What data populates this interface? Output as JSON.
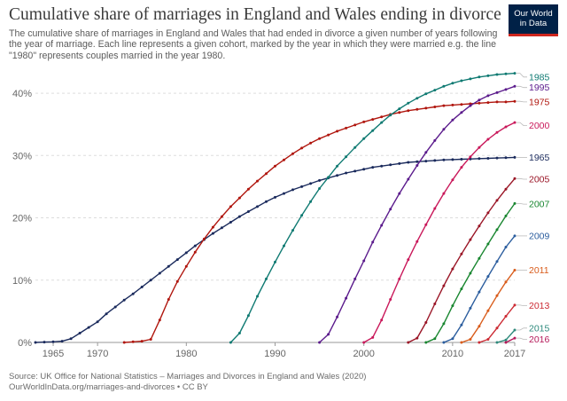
{
  "header": {
    "title": "Cumulative share of marriages in England and Wales ending in divorce",
    "subtitle": "The cumulative share of marriages in England and Wales that had ended in divorce a given number of years following the year of marriage. Each line represents a given cohort, marked by the year in which they were married e.g. the line \"1980\" represents couples married in the year 1980.",
    "logo_line1": "Our World",
    "logo_line2": "in Data"
  },
  "footer": {
    "source": "Source: UK Office for National Statistics – Marriages and Divorces in England and Wales (2020)",
    "url": "OurWorldInData.org/marriages-and-divorces • CC BY"
  },
  "chart_data": {
    "type": "line",
    "title": "Cumulative share of marriages in England and Wales ending in divorce",
    "xlabel": "",
    "ylabel": "",
    "xlim": [
      1963,
      2017
    ],
    "ylim": [
      0,
      43
    ],
    "x_ticks": [
      1965,
      1970,
      1980,
      1990,
      2000,
      2010,
      2017
    ],
    "y_ticks": [
      0,
      10,
      20,
      30,
      40
    ],
    "y_tick_suffix": "%",
    "grid": "horizontal dashed",
    "legend": "line end labels on the right",
    "series": [
      {
        "name": "1965",
        "color": "#1a2a5c",
        "x": [
          1963,
          1964,
          1965,
          1966,
          1967,
          1968,
          1969,
          1970,
          1971,
          1972,
          1973,
          1974,
          1975,
          1976,
          1977,
          1978,
          1979,
          1980,
          1981,
          1982,
          1983,
          1984,
          1985,
          1986,
          1987,
          1988,
          1989,
          1990,
          1991,
          1992,
          1993,
          1994,
          1995,
          1996,
          1997,
          1998,
          1999,
          2000,
          2001,
          2002,
          2003,
          2004,
          2005,
          2006,
          2007,
          2008,
          2009,
          2010,
          2011,
          2012,
          2013,
          2014,
          2015,
          2016,
          2017
        ],
        "y": [
          0,
          0.05,
          0.1,
          0.2,
          0.6,
          1.5,
          2.4,
          3.3,
          4.6,
          5.7,
          6.8,
          7.8,
          8.9,
          10,
          11.1,
          12.2,
          13.3,
          14.4,
          15.5,
          16.5,
          17.5,
          18.4,
          19.3,
          20.2,
          21,
          21.8,
          22.6,
          23.3,
          23.9,
          24.5,
          25,
          25.5,
          26,
          26.4,
          26.8,
          27.2,
          27.5,
          27.8,
          28.1,
          28.3,
          28.5,
          28.7,
          28.9,
          29,
          29.1,
          29.2,
          29.3,
          29.35,
          29.4,
          29.45,
          29.5,
          29.55,
          29.6,
          29.65,
          29.7
        ]
      },
      {
        "name": "1975",
        "color": "#b0160e",
        "x": [
          1973,
          1974,
          1975,
          1976,
          1977,
          1978,
          1979,
          1980,
          1981,
          1982,
          1983,
          1984,
          1985,
          1986,
          1987,
          1988,
          1989,
          1990,
          1991,
          1992,
          1993,
          1994,
          1995,
          1996,
          1997,
          1998,
          1999,
          2000,
          2001,
          2002,
          2003,
          2004,
          2005,
          2006,
          2007,
          2008,
          2009,
          2010,
          2011,
          2012,
          2013,
          2014,
          2015,
          2016,
          2017
        ],
        "y": [
          0,
          0.1,
          0.2,
          0.5,
          3.6,
          6.9,
          9.8,
          12.2,
          14.5,
          16.6,
          18.5,
          20.2,
          21.8,
          23.2,
          24.6,
          25.9,
          27.1,
          28.3,
          29.3,
          30.3,
          31.2,
          32,
          32.7,
          33.3,
          33.9,
          34.4,
          34.9,
          35.4,
          35.8,
          36.2,
          36.6,
          36.9,
          37.2,
          37.4,
          37.6,
          37.8,
          38,
          38.1,
          38.2,
          38.3,
          38.4,
          38.5,
          38.6,
          38.6,
          38.7
        ]
      },
      {
        "name": "1985",
        "color": "#0f7a72",
        "x": [
          1985,
          1986,
          1987,
          1988,
          1989,
          1990,
          1991,
          1992,
          1993,
          1994,
          1995,
          1996,
          1997,
          1998,
          1999,
          2000,
          2001,
          2002,
          2003,
          2004,
          2005,
          2006,
          2007,
          2008,
          2009,
          2010,
          2011,
          2012,
          2013,
          2014,
          2015,
          2016,
          2017
        ],
        "y": [
          0,
          1.5,
          4.3,
          7.4,
          10.2,
          12.9,
          15.5,
          18,
          20.4,
          22.6,
          24.7,
          26.5,
          28.3,
          29.8,
          31.3,
          32.7,
          34,
          35.3,
          36.5,
          37.5,
          38.4,
          39.2,
          39.9,
          40.5,
          41.1,
          41.6,
          42,
          42.3,
          42.6,
          42.8,
          43,
          43.1,
          43.2
        ]
      },
      {
        "name": "1995",
        "color": "#5b1b8c",
        "x": [
          1995,
          1996,
          1997,
          1998,
          1999,
          2000,
          2001,
          2002,
          2003,
          2004,
          2005,
          2006,
          2007,
          2008,
          2009,
          2010,
          2011,
          2012,
          2013,
          2014,
          2015,
          2016,
          2017
        ],
        "y": [
          0,
          1.3,
          4.1,
          7.1,
          10.2,
          13.1,
          16.1,
          18.8,
          21.4,
          23.9,
          26.2,
          28.4,
          30.5,
          32.4,
          34.2,
          35.7,
          36.9,
          38,
          38.9,
          39.6,
          40.1,
          40.6,
          41.1
        ]
      },
      {
        "name": "2000",
        "color": "#c9185a",
        "x": [
          2000,
          2001,
          2002,
          2003,
          2004,
          2005,
          2006,
          2007,
          2008,
          2009,
          2010,
          2011,
          2012,
          2013,
          2014,
          2015,
          2016,
          2017
        ],
        "y": [
          0,
          0.8,
          3.6,
          6.9,
          10.2,
          13.3,
          16.2,
          18.9,
          21.5,
          23.9,
          26.1,
          28.1,
          29.8,
          31.3,
          32.6,
          33.7,
          34.6,
          35.3
        ]
      },
      {
        "name": "2005",
        "color": "#9a1526",
        "x": [
          2005,
          2006,
          2007,
          2008,
          2009,
          2010,
          2011,
          2012,
          2013,
          2014,
          2015,
          2016,
          2017
        ],
        "y": [
          0,
          0.7,
          3.2,
          6.2,
          9.1,
          11.8,
          14.2,
          16.5,
          18.7,
          20.8,
          22.8,
          24.6,
          26.3
        ]
      },
      {
        "name": "2007",
        "color": "#18862f",
        "x": [
          2007,
          2008,
          2009,
          2010,
          2011,
          2012,
          2013,
          2014,
          2015,
          2016,
          2017
        ],
        "y": [
          0,
          0.6,
          3,
          5.9,
          8.6,
          11.1,
          13.5,
          15.8,
          18.1,
          20.3,
          22.3
        ]
      },
      {
        "name": "2009",
        "color": "#2b5d9e",
        "x": [
          2009,
          2010,
          2011,
          2012,
          2013,
          2014,
          2015,
          2016,
          2017
        ],
        "y": [
          0,
          0.6,
          2.8,
          5.5,
          8.1,
          10.6,
          13,
          15.3,
          17.1
        ]
      },
      {
        "name": "2011",
        "color": "#d95c1b",
        "x": [
          2011,
          2012,
          2013,
          2014,
          2015,
          2016,
          2017
        ],
        "y": [
          0,
          0.5,
          2.6,
          5.1,
          7.5,
          9.7,
          11.6
        ]
      },
      {
        "name": "2013",
        "color": "#cc2a33",
        "x": [
          2013,
          2014,
          2015,
          2016,
          2017
        ],
        "y": [
          0,
          0.5,
          2.3,
          4.2,
          6
        ]
      },
      {
        "name": "2015",
        "color": "#2e8a7c",
        "x": [
          2015,
          2016,
          2017
        ],
        "y": [
          0,
          0.4,
          2
        ]
      },
      {
        "name": "2016",
        "color": "#b5195a",
        "x": [
          2016,
          2017
        ],
        "y": [
          0,
          0.7
        ]
      }
    ],
    "end_labels": [
      {
        "name": "1985",
        "label_y": 42.6
      },
      {
        "name": "1995",
        "label_y": 40.9
      },
      {
        "name": "1975",
        "label_y": 38.6
      },
      {
        "name": "2000",
        "label_y": 34.8
      },
      {
        "name": "1965",
        "label_y": 29.7
      },
      {
        "name": "2005",
        "label_y": 26.2
      },
      {
        "name": "2007",
        "label_y": 22.2
      },
      {
        "name": "2009",
        "label_y": 17.1
      },
      {
        "name": "2011",
        "label_y": 11.6
      },
      {
        "name": "2013",
        "label_y": 5.9
      },
      {
        "name": "2015",
        "label_y": 2.3
      },
      {
        "name": "2016",
        "label_y": 0.5
      }
    ]
  }
}
